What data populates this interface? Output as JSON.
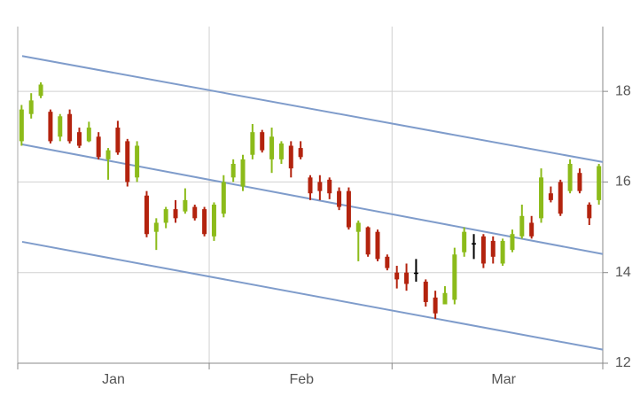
{
  "chart_data": {
    "type": "candlestick",
    "x": [
      0,
      1,
      2,
      3,
      4,
      5,
      6,
      7,
      8,
      9,
      10,
      11,
      12,
      13,
      14,
      15,
      16,
      17,
      18,
      19,
      20,
      21,
      22,
      23,
      24,
      25,
      26,
      27,
      28,
      29,
      30,
      31,
      32,
      33,
      34,
      35,
      36,
      37,
      38,
      39,
      40,
      41,
      42,
      43,
      44,
      45,
      46,
      47,
      48,
      49,
      50,
      51,
      52,
      53,
      54,
      55,
      56,
      57,
      58,
      59,
      60
    ],
    "open": [
      16.9,
      17.5,
      17.9,
      17.55,
      17.0,
      17.5,
      17.1,
      16.9,
      17.0,
      16.5,
      17.2,
      16.9,
      16.1,
      15.7,
      14.9,
      15.1,
      15.4,
      15.35,
      15.45,
      15.4,
      14.8,
      15.3,
      16.1,
      15.9,
      16.6,
      17.1,
      16.5,
      16.5,
      16.8,
      16.75,
      16.1,
      16.0,
      16.05,
      15.8,
      15.8,
      14.9,
      15.0,
      14.9,
      14.35,
      14.0,
      14.0,
      14.0,
      13.8,
      13.45,
      13.3,
      13.4,
      14.45,
      14.65,
      14.8,
      14.7,
      14.2,
      14.5,
      14.8,
      15.1,
      15.2,
      15.75,
      16.0,
      15.8,
      16.2,
      15.5,
      15.6
    ],
    "high": [
      17.7,
      17.96,
      18.2,
      17.6,
      17.5,
      17.6,
      17.2,
      17.33,
      17.1,
      16.75,
      17.35,
      16.95,
      16.9,
      15.8,
      15.2,
      15.45,
      15.6,
      15.86,
      15.5,
      15.45,
      15.55,
      16.15,
      16.5,
      16.6,
      17.28,
      17.15,
      17.2,
      16.9,
      16.9,
      16.9,
      16.15,
      16.15,
      16.1,
      15.88,
      15.88,
      15.15,
      15.02,
      14.95,
      14.4,
      14.15,
      14.2,
      14.3,
      13.85,
      13.6,
      13.7,
      14.55,
      15.0,
      14.85,
      14.85,
      14.8,
      14.75,
      14.95,
      15.5,
      15.25,
      16.3,
      15.9,
      16.05,
      16.5,
      16.3,
      15.55,
      16.4
    ],
    "low": [
      16.8,
      17.4,
      17.85,
      16.85,
      16.9,
      16.85,
      16.75,
      16.88,
      16.5,
      16.05,
      16.6,
      15.9,
      16.0,
      14.78,
      14.5,
      14.98,
      15.1,
      15.3,
      15.15,
      14.8,
      14.7,
      15.22,
      16.0,
      15.8,
      16.5,
      16.65,
      16.2,
      16.4,
      16.1,
      16.5,
      15.6,
      15.6,
      15.62,
      15.38,
      14.95,
      14.25,
      14.35,
      14.25,
      14.05,
      13.65,
      13.6,
      13.8,
      13.25,
      12.98,
      13.3,
      13.3,
      14.35,
      14.3,
      14.1,
      14.2,
      14.15,
      14.45,
      14.75,
      14.75,
      15.1,
      15.55,
      15.25,
      15.75,
      15.75,
      15.05,
      15.5
    ],
    "close": [
      17.6,
      17.8,
      18.15,
      16.9,
      17.45,
      16.9,
      16.8,
      17.2,
      16.55,
      16.7,
      16.65,
      16.0,
      16.8,
      14.85,
      15.1,
      15.4,
      15.2,
      15.6,
      15.2,
      14.85,
      15.5,
      16.0,
      16.4,
      16.5,
      17.1,
      16.7,
      17.0,
      16.85,
      16.3,
      16.55,
      15.75,
      15.8,
      15.75,
      15.45,
      15.0,
      15.1,
      14.4,
      14.3,
      14.1,
      13.85,
      13.75,
      14.0,
      13.35,
      13.1,
      13.55,
      14.4,
      14.9,
      14.65,
      14.2,
      14.35,
      14.7,
      14.85,
      15.25,
      14.8,
      16.1,
      15.6,
      15.3,
      16.4,
      15.8,
      15.2,
      16.35
    ],
    "up_color": "#8cbb1a",
    "down_color": "#b3230e",
    "flat_color": "#000000",
    "channel": {
      "color": "#7f9ccb",
      "x": [
        0.06,
        60.4
      ],
      "upper": [
        18.78,
        16.44
      ],
      "middle": [
        16.83,
        14.41
      ],
      "lower": [
        14.68,
        12.3
      ]
    },
    "xlim": [
      -0.4,
      60.4
    ],
    "xticks": [
      {
        "value": 9.55,
        "label": "Jan"
      },
      {
        "value": 29.1,
        "label": "Feb"
      },
      {
        "value": 50.1,
        "label": "Mar"
      }
    ],
    "x_separators": [
      19.5,
      38.5
    ],
    "ylim": [
      12,
      19.43
    ],
    "yticks": [
      12,
      14,
      16,
      18
    ],
    "grid": true
  }
}
